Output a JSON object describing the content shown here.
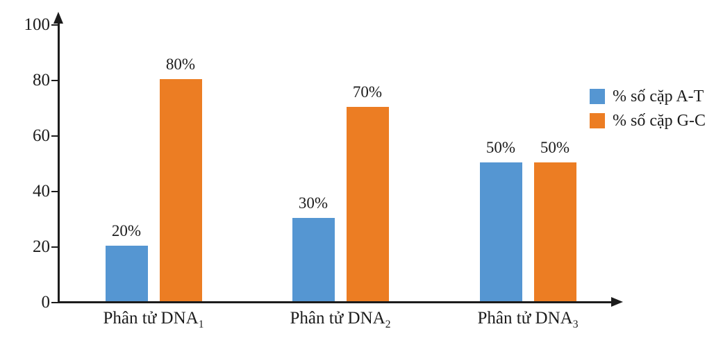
{
  "chart_data": {
    "type": "bar",
    "title": "",
    "xlabel": "",
    "ylabel": "",
    "categories": [
      {
        "text": "Phân tử DNA",
        "sub": "1"
      },
      {
        "text": "Phân tử DNA",
        "sub": "2"
      },
      {
        "text": "Phân tử DNA",
        "sub": "3"
      }
    ],
    "series": [
      {
        "name": "% số cặp A-T",
        "color": "#5596D2",
        "values": [
          20,
          30,
          50
        ],
        "value_labels": [
          "20%",
          "30%",
          "50%"
        ]
      },
      {
        "name": "% số cặp G-C",
        "color": "#EC7D23",
        "values": [
          80,
          70,
          50
        ],
        "value_labels": [
          "80%",
          "70%",
          "50%"
        ]
      }
    ],
    "ylim": [
      0,
      100
    ],
    "yticks": [
      0,
      20,
      40,
      60,
      80,
      100
    ],
    "ytick_labels": [
      "0",
      "20",
      "40",
      "60",
      "80",
      "100"
    ],
    "grid": false,
    "legend_position": "right"
  },
  "colors": {
    "axis": "#1c1c1c",
    "text": "#1c1c1c",
    "background": "#ffffff"
  }
}
